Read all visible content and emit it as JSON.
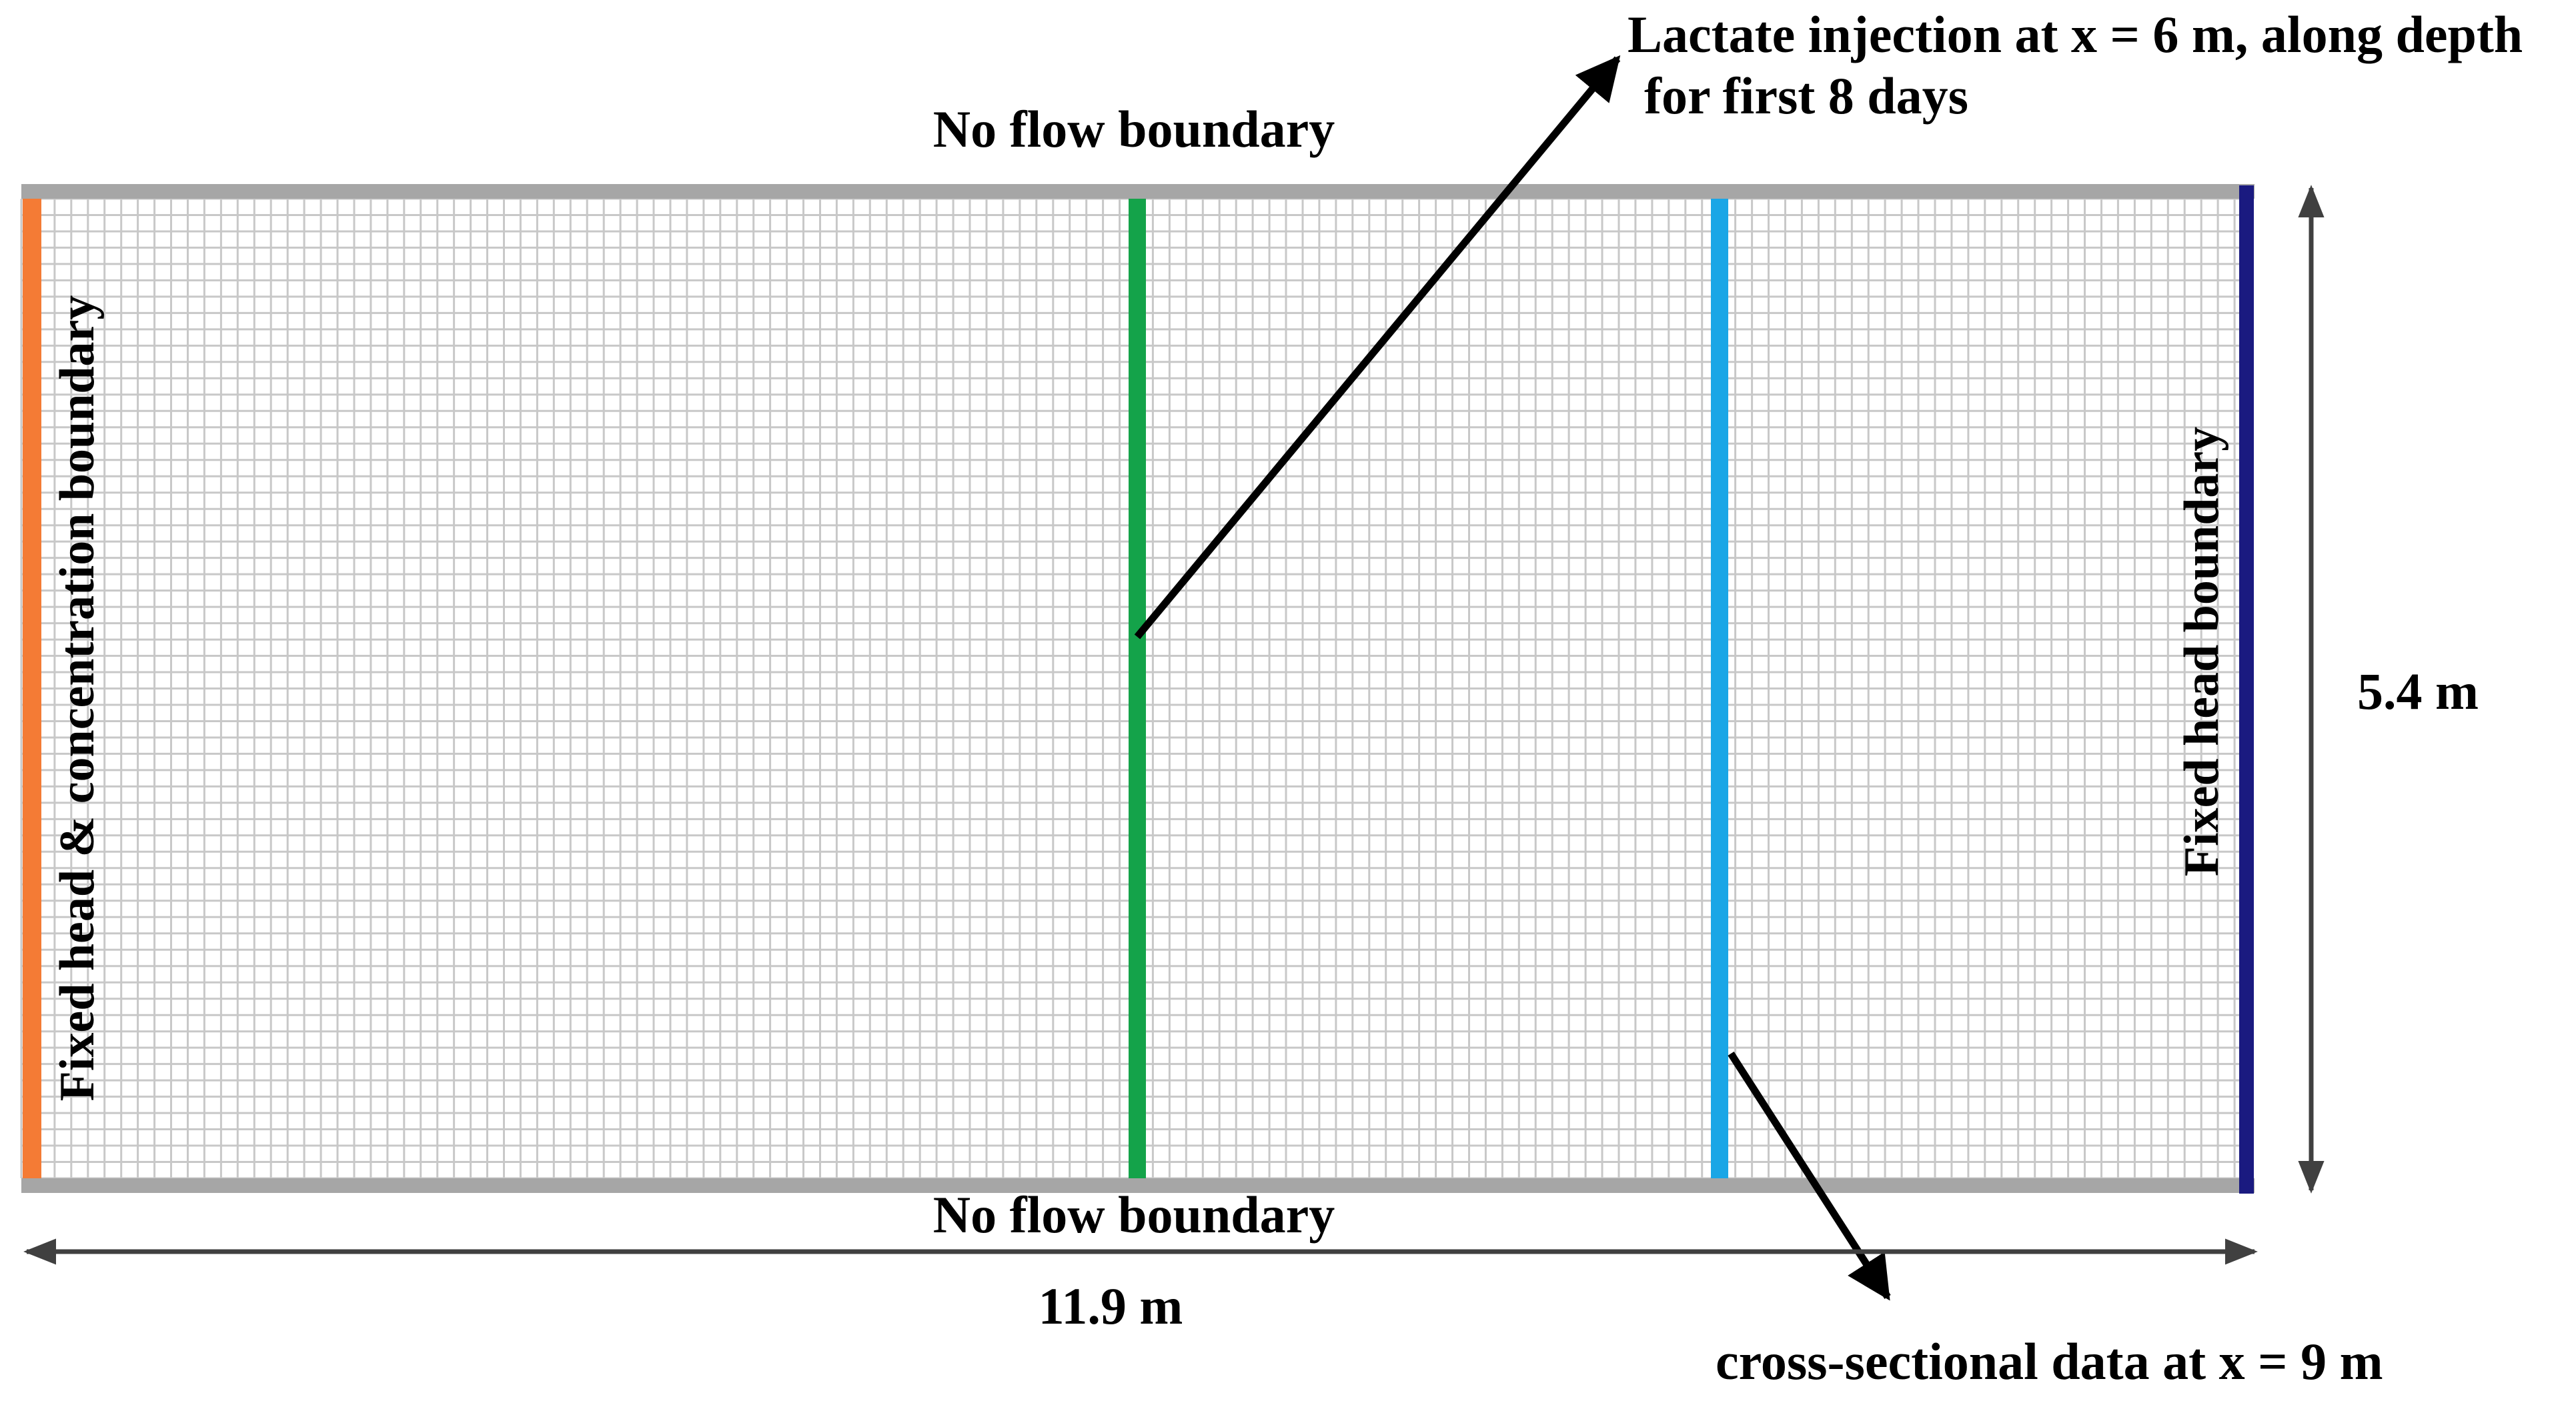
{
  "labels": {
    "top_boundary": "No flow boundary",
    "bottom_boundary": "No flow boundary",
    "left_boundary": "Fixed head & concentration boundary",
    "right_boundary": "Fixed head boundary",
    "injection_line1": "Lactate injection at x = 6 m, along depth",
    "injection_line2": "for first 8 days",
    "cross_section": "cross-sectional data at x = 9 m",
    "width_dim": "11.9 m",
    "height_dim": "5.4 m"
  },
  "colors": {
    "grid_line": "#c8c8c8",
    "no_flow_boundary": "#a6a6a6",
    "fixed_head_concentration": "#f47b35",
    "fixed_head": "#1a1a80",
    "injection_line": "#14a34a",
    "cross_section_line": "#1aa6e6",
    "arrow": "#000000",
    "dimension": "#404040"
  }
}
